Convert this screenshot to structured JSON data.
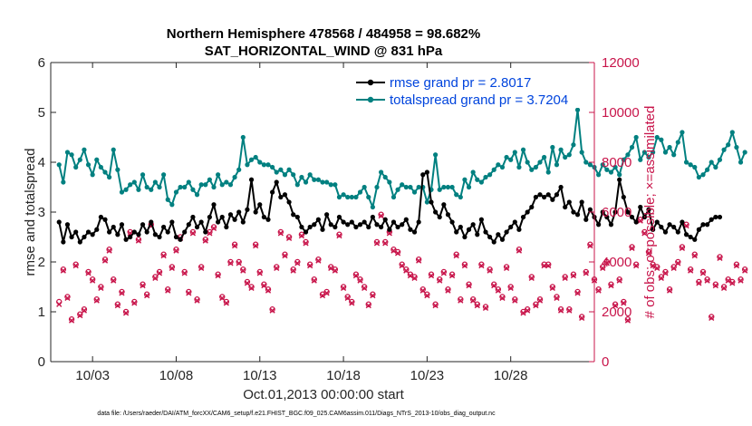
{
  "chart_data": {
    "type": "line",
    "title": "Northern Hemisphere 478568 / 484958 = 98.682%",
    "subtitle": "SAT_HORIZONTAL_WIND @ 831 hPa",
    "xlabel": "Oct.01,2013 00:00:00 start",
    "ylabel": "rmse and totalspread",
    "ylabel_right": "# of obs: o=possible; ×=assimilated",
    "footer": "data file: /Users/raeder/DAI/ATM_forcXX/CAM6_setup/f.e21.FHIST_BGC.f09_025.CAM6assim.011/Diags_NTrS_2013-10/obs_diag_output.nc",
    "xlim": [
      0.5,
      33.0
    ],
    "ylim": [
      0,
      6
    ],
    "ylim_right": [
      0,
      12000
    ],
    "x_ticks": [
      3,
      8,
      13,
      18,
      23,
      28
    ],
    "x_ticklabels": [
      "10/03",
      "10/08",
      "10/13",
      "10/18",
      "10/23",
      "10/28"
    ],
    "y_ticks": [
      0,
      1,
      2,
      3,
      4,
      5,
      6
    ],
    "y_ticks_right": [
      0,
      2000,
      4000,
      6000,
      8000,
      10000,
      12000
    ],
    "grid": false,
    "legend_position": "top-right",
    "colors": {
      "rmse": "#000000",
      "totalspread": "#008080",
      "obs": "#c8144a",
      "legend_text": "#0044dd"
    },
    "time_step_days": 0.25,
    "series": [
      {
        "name": "rmse grand pr = 2.8017",
        "axis": "left",
        "marker": "filled-circle",
        "values": [
          2.8,
          2.4,
          2.75,
          2.5,
          2.6,
          2.4,
          2.5,
          2.6,
          2.55,
          2.65,
          2.9,
          2.85,
          2.6,
          2.7,
          2.55,
          2.75,
          2.45,
          2.5,
          2.6,
          2.55,
          2.75,
          2.6,
          2.8,
          2.55,
          2.5,
          2.7,
          2.6,
          2.8,
          2.5,
          2.45,
          2.6,
          2.75,
          2.9,
          2.7,
          2.8,
          2.6,
          2.9,
          3.15,
          2.8,
          2.9,
          2.7,
          2.95,
          2.85,
          3.0,
          2.8,
          3.05,
          3.65,
          3.0,
          3.15,
          2.9,
          2.85,
          3.4,
          3.6,
          3.3,
          3.35,
          3.2,
          2.95,
          2.9,
          2.7,
          2.6,
          2.7,
          2.75,
          2.85,
          2.65,
          2.95,
          2.75,
          2.7,
          2.9,
          2.8,
          2.75,
          2.8,
          2.7,
          2.75,
          2.8,
          2.7,
          2.9,
          2.75,
          2.7,
          2.85,
          2.65,
          2.8,
          2.7,
          2.75,
          2.85,
          2.65,
          2.6,
          2.8,
          3.75,
          3.8,
          3.2,
          3.0,
          2.9,
          3.15,
          2.95,
          2.8,
          2.6,
          2.7,
          2.5,
          2.65,
          2.75,
          2.55,
          2.85,
          2.6,
          2.5,
          2.4,
          2.55,
          2.45,
          2.6,
          2.7,
          2.8,
          2.65,
          2.9,
          3.0,
          3.1,
          3.3,
          3.35,
          3.3,
          3.35,
          3.25,
          3.35,
          3.5,
          3.1,
          3.2,
          3.0,
          2.95,
          3.2,
          2.85,
          3.05,
          2.9,
          2.75,
          3.0,
          2.9,
          2.75,
          3.0,
          3.65,
          3.3,
          3.0,
          2.9,
          2.8,
          3.1,
          2.9,
          3.05,
          2.65,
          2.8,
          2.7,
          2.6,
          2.75,
          2.7,
          2.6,
          2.8,
          2.55,
          2.5,
          2.45,
          2.65,
          2.75,
          2.75,
          2.85,
          2.9,
          2.9
        ]
      },
      {
        "name": "totalspread grand pr = 3.7204",
        "axis": "left",
        "marker": "filled-circle",
        "values": [
          3.95,
          3.6,
          4.2,
          4.15,
          3.9,
          4.05,
          4.25,
          3.95,
          3.75,
          4.05,
          3.9,
          3.8,
          3.7,
          4.25,
          3.85,
          3.4,
          3.45,
          3.55,
          3.6,
          3.45,
          3.75,
          3.5,
          3.45,
          3.6,
          3.5,
          3.75,
          3.25,
          3.15,
          3.4,
          3.5,
          3.5,
          3.6,
          3.45,
          3.35,
          3.55,
          3.55,
          3.65,
          3.5,
          3.75,
          3.55,
          3.6,
          3.55,
          3.7,
          3.85,
          4.5,
          3.95,
          4.05,
          4.1,
          4.0,
          3.95,
          3.95,
          3.9,
          3.8,
          3.85,
          3.75,
          3.85,
          3.75,
          3.55,
          3.7,
          3.6,
          3.75,
          3.65,
          3.65,
          3.6,
          3.6,
          3.55,
          3.55,
          3.3,
          3.35,
          3.3,
          3.3,
          3.3,
          3.4,
          3.5,
          3.3,
          3.1,
          3.5,
          3.8,
          3.7,
          3.6,
          3.3,
          3.45,
          3.55,
          3.5,
          3.5,
          3.4,
          3.5,
          3.5,
          3.2,
          3.45,
          4.15,
          3.45,
          3.5,
          3.5,
          3.5,
          3.35,
          3.3,
          3.65,
          3.5,
          3.8,
          3.65,
          3.6,
          3.7,
          3.75,
          3.85,
          3.95,
          3.9,
          4.1,
          4.05,
          4.2,
          3.9,
          4.25,
          4.0,
          3.85,
          3.9,
          4.0,
          4.1,
          3.8,
          4.3,
          3.95,
          4.25,
          4.1,
          4.15,
          4.35,
          5.05,
          4.2,
          4.0,
          3.95,
          3.9,
          3.75,
          3.95,
          3.85,
          3.8,
          3.9,
          3.75,
          4.05,
          4.15,
          4.3,
          4.5,
          4.05,
          4.2,
          4.1,
          4.2,
          4.5,
          4.45,
          4.2,
          4.3,
          4.15,
          4.4,
          4.6,
          4.0,
          3.95,
          3.9,
          3.7,
          3.75,
          3.85,
          4.0,
          3.9,
          4.05,
          4.25,
          4.35,
          4.6,
          4.3,
          4.0,
          4.2
        ]
      },
      {
        "name": "obs possible",
        "axis": "right",
        "marker": "circle",
        "values": [
          2400,
          3700,
          2600,
          1700,
          3900,
          1900,
          2100,
          3600,
          3300,
          2500,
          3000,
          4100,
          4500,
          3300,
          2300,
          2800,
          2000,
          5200,
          2400,
          4900,
          3100,
          2700,
          5500,
          3400,
          3600,
          4300,
          2900,
          3800,
          4500,
          5000,
          3600,
          2800,
          5200,
          2500,
          3800,
          4900,
          5200,
          5400,
          3500,
          2600,
          2400,
          4000,
          4700,
          4000,
          3700,
          3200,
          3000,
          4700,
          3600,
          3100,
          2900,
          2100,
          3800,
          5200,
          4300,
          5000,
          3700,
          4000,
          5100,
          4800,
          3900,
          3300,
          4100,
          2700,
          2800,
          3800,
          3700,
          5100,
          3000,
          2600,
          2400,
          3500,
          3300,
          3000,
          2300,
          2700,
          4800,
          5900,
          4800,
          5200,
          4500,
          4400,
          3900,
          3700,
          3500,
          3400,
          4100,
          2900,
          2700,
          3500,
          2300,
          3300,
          3600,
          2900,
          3500,
          4300,
          2500,
          3900,
          3100,
          2500,
          2300,
          3900,
          2200,
          3700,
          3100,
          2900,
          2600,
          3800,
          3000,
          2500,
          4500,
          2000,
          2100,
          3400,
          2300,
          2500,
          3900,
          3900,
          3000,
          2600,
          2100,
          3400,
          2100,
          3500,
          2800,
          1800,
          3600,
          4700,
          3300,
          2900,
          3800,
          4000,
          3100,
          2300,
          3300,
          2400,
          1700,
          4600,
          3900,
          5700,
          5200,
          4400,
          3900,
          3800,
          3400,
          3600,
          2900,
          3800,
          4000,
          4600,
          5500,
          3700,
          4300,
          3200,
          3600,
          3300,
          1800,
          3100,
          4200,
          3000,
          3300,
          3200,
          3900,
          3300,
          3700
        ]
      },
      {
        "name": "obs assimilated",
        "axis": "right",
        "marker": "x",
        "values": [
          2300,
          3650,
          2550,
          1650,
          3850,
          1850,
          2050,
          3550,
          3250,
          2450,
          2950,
          4050,
          4450,
          3250,
          2250,
          2750,
          1950,
          5150,
          2350,
          4850,
          3050,
          2650,
          5450,
          3350,
          3550,
          4250,
          2850,
          3750,
          4450,
          4950,
          3550,
          2750,
          5150,
          2450,
          3750,
          4850,
          5150,
          5350,
          3450,
          2550,
          2350,
          3950,
          4650,
          3950,
          3650,
          3150,
          2950,
          4650,
          3550,
          3050,
          2850,
          2050,
          3750,
          5150,
          4250,
          4950,
          3650,
          3950,
          5050,
          4750,
          3850,
          3250,
          4050,
          2650,
          2750,
          3750,
          3650,
          5050,
          2950,
          2550,
          2350,
          3450,
          3250,
          2950,
          2250,
          2650,
          4750,
          5850,
          4750,
          5150,
          4450,
          4350,
          3850,
          3650,
          3450,
          3350,
          4050,
          2850,
          2650,
          3450,
          2250,
          3250,
          3550,
          2850,
          3450,
          4250,
          2450,
          3850,
          3050,
          2450,
          2250,
          3850,
          2150,
          3650,
          3050,
          2850,
          2550,
          3750,
          2950,
          2450,
          4450,
          1950,
          2050,
          3350,
          2250,
          2450,
          3850,
          3850,
          2950,
          2550,
          2050,
          3350,
          2050,
          3450,
          2750,
          1750,
          3550,
          4650,
          3250,
          2850,
          3750,
          3950,
          3050,
          2250,
          3250,
          2350,
          1650,
          4550,
          3850,
          5650,
          5150,
          4350,
          3850,
          3750,
          3350,
          3550,
          2850,
          3750,
          3950,
          4550,
          5450,
          3650,
          4250,
          3150,
          3550,
          3250,
          1750,
          3050,
          4150,
          2950,
          3250,
          3150,
          3850,
          3250,
          3650
        ]
      }
    ]
  }
}
